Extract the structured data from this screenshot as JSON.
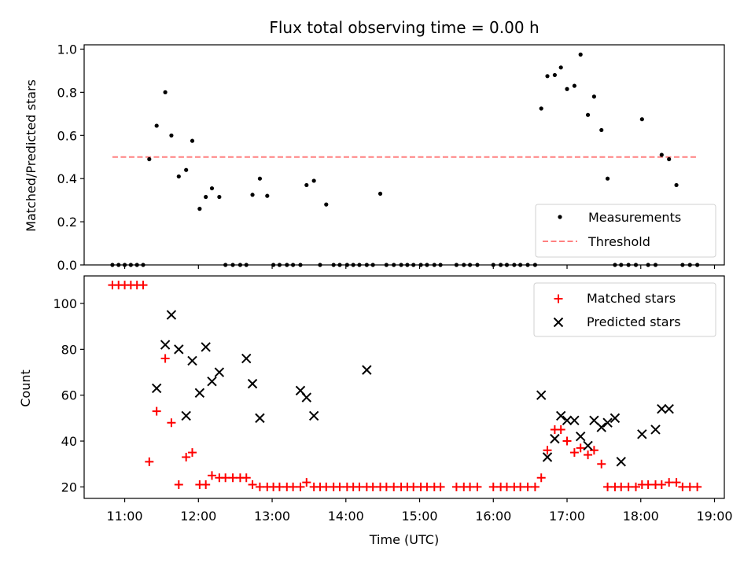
{
  "chart_data": [
    {
      "type": "scatter",
      "title": "Flux total observing time = 0.00 h",
      "ylabel": "Matched/Predicted stars",
      "xlim": [
        "10:27",
        "19:08"
      ],
      "ylim": [
        0,
        1.02
      ],
      "yticks": [
        "0.0",
        "0.2",
        "0.4",
        "0.6",
        "0.8",
        "1.0"
      ],
      "legend_position": "lower-right",
      "series": [
        {
          "name": "Measurements",
          "kind": "points",
          "color": "#000000",
          "x": [
            "10:50",
            "10:55",
            "11:00",
            "11:05",
            "11:10",
            "11:15",
            "11:20",
            "11:26",
            "11:33",
            "11:38",
            "11:44",
            "11:50",
            "11:55",
            "12:01",
            "12:06",
            "12:11",
            "12:17",
            "12:22",
            "12:28",
            "12:34",
            "12:39",
            "12:44",
            "12:50",
            "12:56",
            "13:01",
            "13:06",
            "13:12",
            "13:17",
            "13:23",
            "13:28",
            "13:34",
            "13:39",
            "13:44",
            "13:50",
            "13:55",
            "14:01",
            "14:06",
            "14:11",
            "14:17",
            "14:22",
            "14:28",
            "14:33",
            "14:39",
            "14:45",
            "14:50",
            "14:55",
            "15:01",
            "15:06",
            "15:12",
            "15:17",
            "15:30",
            "15:36",
            "15:41",
            "15:47",
            "16:00",
            "16:06",
            "16:11",
            "16:17",
            "16:22",
            "16:28",
            "16:34",
            "16:39",
            "16:44",
            "16:50",
            "16:55",
            "17:00",
            "17:06",
            "17:11",
            "17:17",
            "17:22",
            "17:28",
            "17:33",
            "17:39",
            "17:44",
            "17:50",
            "17:56",
            "18:01",
            "18:06",
            "18:12",
            "18:17",
            "18:23",
            "18:29",
            "18:34",
            "18:40",
            "18:46"
          ],
          "y": [
            0,
            0,
            0,
            0,
            0,
            0,
            0.49,
            0.645,
            0.8,
            0.6,
            0.41,
            0.44,
            0.575,
            0.26,
            0.315,
            0.355,
            0.315,
            0,
            0,
            0,
            0,
            0.325,
            0.4,
            0.32,
            0,
            0,
            0,
            0,
            0,
            0.37,
            0.39,
            0,
            0.28,
            0,
            0,
            0,
            0,
            0,
            0,
            0,
            0.33,
            0,
            0,
            0,
            0,
            0,
            0,
            0,
            0,
            0,
            0,
            0,
            0,
            0,
            0,
            0,
            0,
            0,
            0,
            0,
            0,
            0.725,
            0.875,
            0.88,
            0.915,
            0.815,
            0.83,
            0.975,
            0.695,
            0.78,
            0.625,
            0.4,
            0,
            0,
            0,
            0,
            0.675,
            0,
            0,
            0.51,
            0.49,
            0.37,
            0,
            0,
            0
          ]
        },
        {
          "name": "Threshold",
          "kind": "dashed-line",
          "color": "#ff8080",
          "x": [
            "10:50",
            "18:46"
          ],
          "y": [
            0.5,
            0.5
          ]
        }
      ]
    },
    {
      "type": "scatter",
      "xlabel": "Time (UTC)",
      "ylabel": "Count",
      "xlim": [
        "10:27",
        "19:08"
      ],
      "ylim": [
        15,
        112
      ],
      "xticks": [
        "11:00",
        "12:00",
        "13:00",
        "14:00",
        "15:00",
        "16:00",
        "17:00",
        "18:00",
        "19:00"
      ],
      "yticks": [
        "20",
        "40",
        "60",
        "80",
        "100"
      ],
      "legend_position": "upper-right",
      "series": [
        {
          "name": "Matched stars",
          "kind": "plus",
          "color": "#ff0000",
          "x": [
            "10:50",
            "10:55",
            "11:00",
            "11:05",
            "11:10",
            "11:15",
            "11:20",
            "11:26",
            "11:33",
            "11:38",
            "11:44",
            "11:50",
            "11:55",
            "12:01",
            "12:06",
            "12:11",
            "12:17",
            "12:22",
            "12:28",
            "12:34",
            "12:39",
            "12:44",
            "12:50",
            "12:56",
            "13:01",
            "13:06",
            "13:12",
            "13:17",
            "13:23",
            "13:28",
            "13:34",
            "13:39",
            "13:44",
            "13:50",
            "13:55",
            "14:01",
            "14:06",
            "14:11",
            "14:17",
            "14:22",
            "14:28",
            "14:33",
            "14:39",
            "14:45",
            "14:50",
            "14:55",
            "15:01",
            "15:06",
            "15:12",
            "15:17",
            "15:30",
            "15:36",
            "15:41",
            "15:47",
            "16:00",
            "16:06",
            "16:11",
            "16:17",
            "16:22",
            "16:28",
            "16:34",
            "16:39",
            "16:44",
            "16:50",
            "16:55",
            "17:00",
            "17:06",
            "17:11",
            "17:17",
            "17:22",
            "17:28",
            "17:33",
            "17:39",
            "17:44",
            "17:50",
            "17:56",
            "18:01",
            "18:06",
            "18:12",
            "18:17",
            "18:23",
            "18:29",
            "18:34",
            "18:40",
            "18:46"
          ],
          "y": [
            108,
            108,
            108,
            108,
            108,
            108,
            31,
            53,
            76,
            48,
            21,
            33,
            35,
            21,
            21,
            25,
            24,
            24,
            24,
            24,
            24,
            21,
            20,
            20,
            20,
            20,
            20,
            20,
            20,
            22,
            20,
            20,
            20,
            20,
            20,
            20,
            20,
            20,
            20,
            20,
            20,
            20,
            20,
            20,
            20,
            20,
            20,
            20,
            20,
            20,
            20,
            20,
            20,
            20,
            20,
            20,
            20,
            20,
            20,
            20,
            20,
            24,
            36,
            45,
            45,
            40,
            35,
            37,
            34,
            36,
            30,
            20,
            20,
            20,
            20,
            20,
            21,
            21,
            21,
            21,
            22,
            22,
            20,
            20,
            20
          ]
        },
        {
          "name": "Predicted stars",
          "kind": "cross",
          "color": "#000000",
          "x": [
            "11:26",
            "11:33",
            "11:38",
            "11:44",
            "11:50",
            "11:55",
            "12:01",
            "12:06",
            "12:11",
            "12:17",
            "12:39",
            "12:44",
            "12:50",
            "13:23",
            "13:28",
            "13:34",
            "14:17",
            "16:39",
            "16:44",
            "16:50",
            "16:55",
            "17:00",
            "17:06",
            "17:11",
            "17:17",
            "17:22",
            "17:28",
            "17:33",
            "17:39",
            "17:44",
            "18:01",
            "18:12",
            "18:17",
            "18:23"
          ],
          "y": [
            63,
            82,
            95,
            80,
            51,
            75,
            61,
            81,
            66,
            70,
            76,
            65,
            50,
            62,
            59,
            51,
            71,
            60,
            33,
            41,
            51,
            49,
            49,
            42,
            38,
            49,
            46,
            48,
            50,
            31,
            43,
            45,
            54,
            54
          ]
        }
      ]
    }
  ]
}
